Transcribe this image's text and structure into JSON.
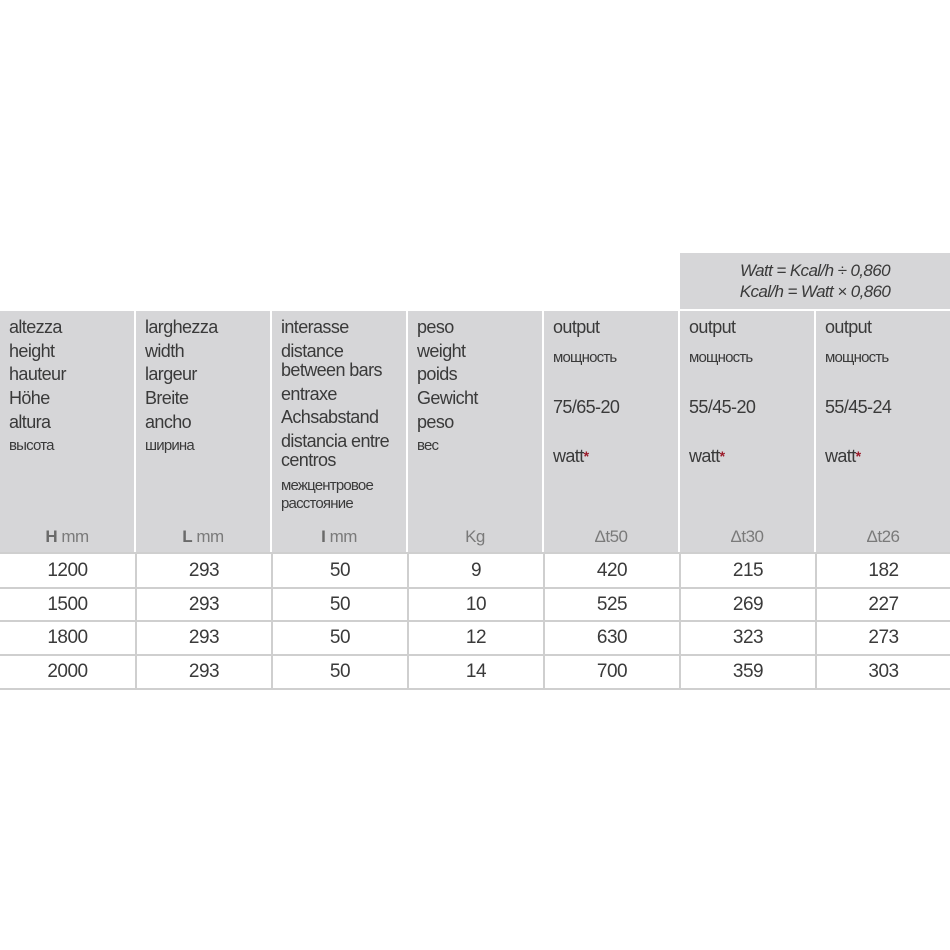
{
  "formula": {
    "line1": "Watt = Kcal/h ÷ 0,860",
    "line2": "Kcal/h = Watt × 0,860"
  },
  "headers": [
    {
      "lines": [
        "altezza",
        "height",
        "hauteur",
        "Höhe",
        "altura"
      ],
      "cyr": "высота",
      "unit_sym": "H",
      "unit": "mm"
    },
    {
      "lines": [
        "larghezza",
        "width",
        "largeur",
        "Breite",
        "ancho"
      ],
      "cyr": "ширина",
      "unit_sym": "L",
      "unit": "mm"
    },
    {
      "lines": [
        "interasse",
        "distance",
        "between bars",
        "entraxe",
        "Achsabstand",
        "distancia entre",
        "centros"
      ],
      "cyr1": "межцентровое",
      "cyr2": "расстояние",
      "unit_sym": "I",
      "unit": "mm"
    },
    {
      "lines": [
        "peso",
        "weight",
        "poids",
        "Gewicht",
        "peso"
      ],
      "cyr": "вес",
      "unit": "Kg"
    },
    {
      "label": "output",
      "cyr": "мощность",
      "temp": "75/65-20",
      "watt": "watt",
      "star": "*",
      "unit": "Δt50"
    },
    {
      "label": "output",
      "cyr": "мощность",
      "temp": "55/45-20",
      "watt": "watt",
      "star": "*",
      "unit": "Δt30"
    },
    {
      "label": "output",
      "cyr": "мощность",
      "temp": "55/45-24",
      "watt": "watt",
      "star": "*",
      "unit": "Δt26"
    }
  ],
  "rows": [
    [
      "1200",
      "293",
      "50",
      "9",
      "420",
      "215",
      "182"
    ],
    [
      "1500",
      "293",
      "50",
      "10",
      "525",
      "269",
      "227"
    ],
    [
      "1800",
      "293",
      "50",
      "12",
      "630",
      "323",
      "273"
    ],
    [
      "2000",
      "293",
      "50",
      "14",
      "700",
      "359",
      "303"
    ]
  ],
  "colors": {
    "header_bg": "#d6d6d8",
    "star": "#9b1b2a",
    "border": "#cfcfcf"
  }
}
